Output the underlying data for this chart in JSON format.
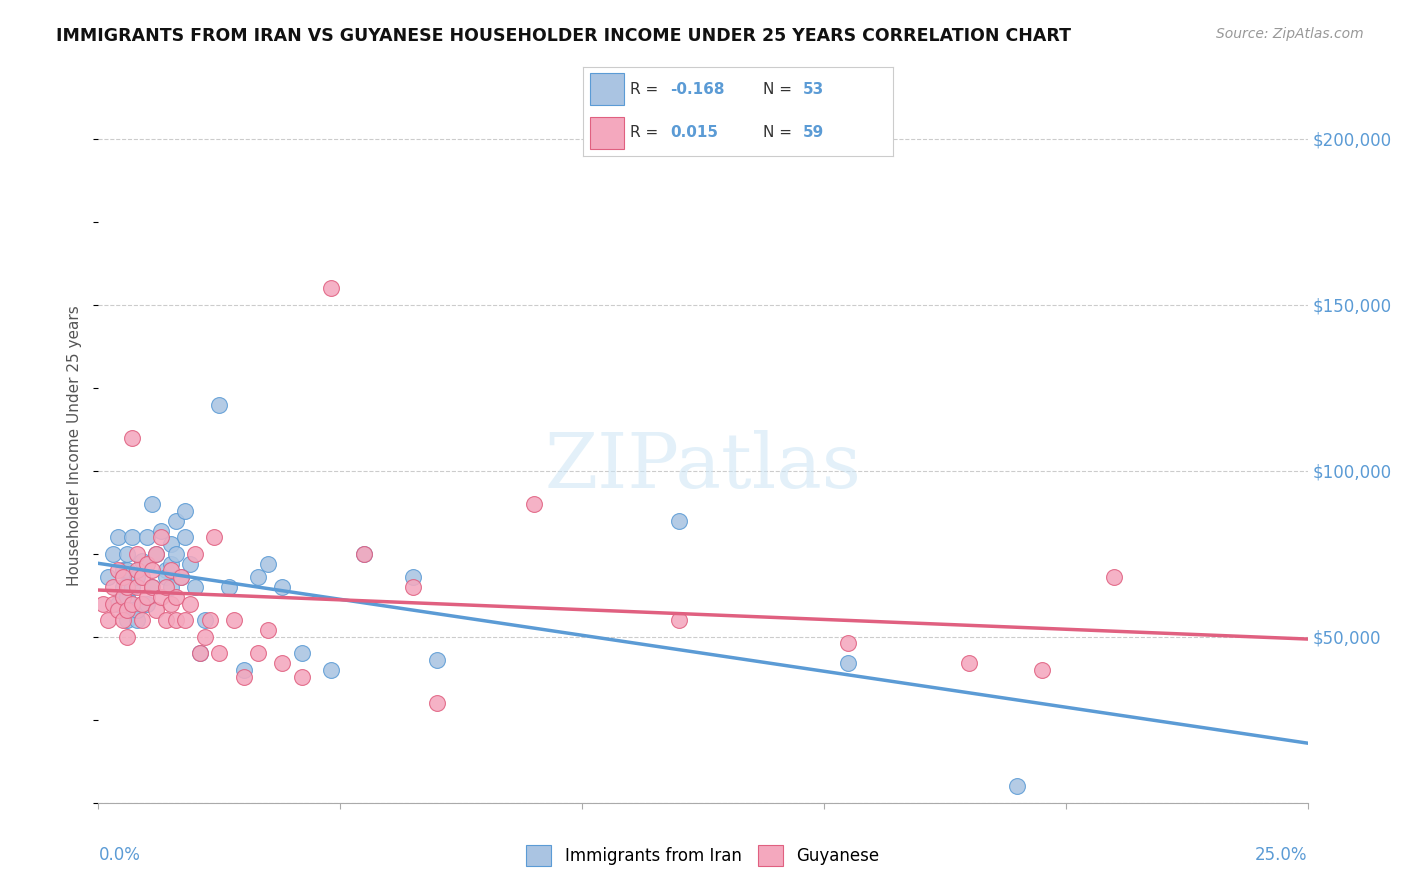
{
  "title": "IMMIGRANTS FROM IRAN VS GUYANESE HOUSEHOLDER INCOME UNDER 25 YEARS CORRELATION CHART",
  "source": "Source: ZipAtlas.com",
  "ylabel": "Householder Income Under 25 years",
  "xmin": 0.0,
  "xmax": 0.25,
  "ymin": 0,
  "ymax": 215000,
  "yticks": [
    50000,
    100000,
    150000,
    200000
  ],
  "ytick_labels": [
    "$50,000",
    "$100,000",
    "$150,000",
    "$200,000"
  ],
  "grid_yticks": [
    0,
    50000,
    100000,
    150000,
    200000
  ],
  "legend_blue_label": "Immigrants from Iran",
  "legend_pink_label": "Guyanese",
  "blue_color": "#aac4e2",
  "blue_line_color": "#5b9bd5",
  "blue_edge_color": "#5b9bd5",
  "pink_color": "#f4a8be",
  "pink_line_color": "#e06080",
  "pink_edge_color": "#e06080",
  "blue_R": "-0.168",
  "blue_N": "53",
  "pink_R": "0.015",
  "pink_N": "59",
  "blue_scatter_x": [
    0.002,
    0.003,
    0.004,
    0.004,
    0.005,
    0.005,
    0.005,
    0.006,
    0.006,
    0.006,
    0.006,
    0.007,
    0.007,
    0.007,
    0.008,
    0.008,
    0.008,
    0.009,
    0.009,
    0.01,
    0.01,
    0.011,
    0.011,
    0.012,
    0.013,
    0.014,
    0.014,
    0.015,
    0.015,
    0.015,
    0.016,
    0.016,
    0.017,
    0.018,
    0.018,
    0.019,
    0.02,
    0.021,
    0.022,
    0.025,
    0.027,
    0.03,
    0.033,
    0.035,
    0.038,
    0.042,
    0.048,
    0.055,
    0.065,
    0.07,
    0.12,
    0.155,
    0.19
  ],
  "blue_scatter_y": [
    68000,
    75000,
    60000,
    80000,
    62000,
    65000,
    70000,
    55000,
    62000,
    70000,
    75000,
    58000,
    65000,
    80000,
    55000,
    58000,
    68000,
    60000,
    73000,
    60000,
    80000,
    65000,
    90000,
    75000,
    82000,
    70000,
    68000,
    65000,
    72000,
    78000,
    75000,
    85000,
    68000,
    80000,
    88000,
    72000,
    65000,
    45000,
    55000,
    120000,
    65000,
    40000,
    68000,
    72000,
    65000,
    45000,
    40000,
    75000,
    68000,
    43000,
    85000,
    42000,
    5000
  ],
  "pink_scatter_x": [
    0.001,
    0.002,
    0.003,
    0.003,
    0.004,
    0.004,
    0.005,
    0.005,
    0.005,
    0.006,
    0.006,
    0.006,
    0.007,
    0.007,
    0.008,
    0.008,
    0.008,
    0.009,
    0.009,
    0.009,
    0.01,
    0.01,
    0.011,
    0.011,
    0.012,
    0.012,
    0.013,
    0.013,
    0.014,
    0.014,
    0.015,
    0.015,
    0.016,
    0.016,
    0.017,
    0.018,
    0.019,
    0.02,
    0.021,
    0.022,
    0.023,
    0.024,
    0.025,
    0.028,
    0.03,
    0.033,
    0.035,
    0.038,
    0.042,
    0.048,
    0.055,
    0.065,
    0.07,
    0.09,
    0.12,
    0.155,
    0.18,
    0.195,
    0.21
  ],
  "pink_scatter_y": [
    60000,
    55000,
    60000,
    65000,
    58000,
    70000,
    55000,
    62000,
    68000,
    50000,
    58000,
    65000,
    110000,
    60000,
    65000,
    70000,
    75000,
    55000,
    60000,
    68000,
    62000,
    72000,
    65000,
    70000,
    58000,
    75000,
    62000,
    80000,
    55000,
    65000,
    60000,
    70000,
    55000,
    62000,
    68000,
    55000,
    60000,
    75000,
    45000,
    50000,
    55000,
    80000,
    45000,
    55000,
    38000,
    45000,
    52000,
    42000,
    38000,
    155000,
    75000,
    65000,
    30000,
    90000,
    55000,
    48000,
    42000,
    40000,
    68000
  ]
}
